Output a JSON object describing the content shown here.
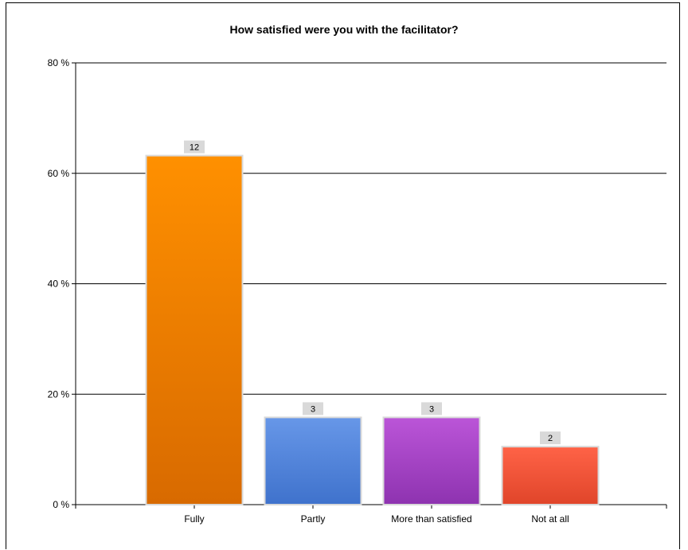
{
  "chart_data": {
    "type": "bar",
    "title": "How satisfied were you with the facilitator?",
    "xlabel": "",
    "ylabel": "",
    "categories": [
      "Fully",
      "Partly",
      "More than satisfied",
      "Not at all"
    ],
    "values": [
      63.2,
      15.8,
      15.8,
      10.5
    ],
    "data_labels": [
      "12",
      "3",
      "3",
      "2"
    ],
    "ylim": [
      0,
      80
    ],
    "yticks": [
      0,
      20,
      40,
      60,
      80
    ],
    "ytick_labels": [
      "0 %",
      "20 %",
      "40 %",
      "60 %",
      "80 %"
    ],
    "grid": true,
    "legend": "none",
    "bar_colors": [
      {
        "top": "#ff9000",
        "bottom": "#d86a00"
      },
      {
        "top": "#6797e8",
        "bottom": "#3f72cc"
      },
      {
        "top": "#bb55d8",
        "bottom": "#8e33b0"
      },
      {
        "top": "#ff6347",
        "bottom": "#e0452a"
      }
    ],
    "bar_edge_color": "#d9d9d9",
    "label_bg_color": "#d9d9d9"
  }
}
